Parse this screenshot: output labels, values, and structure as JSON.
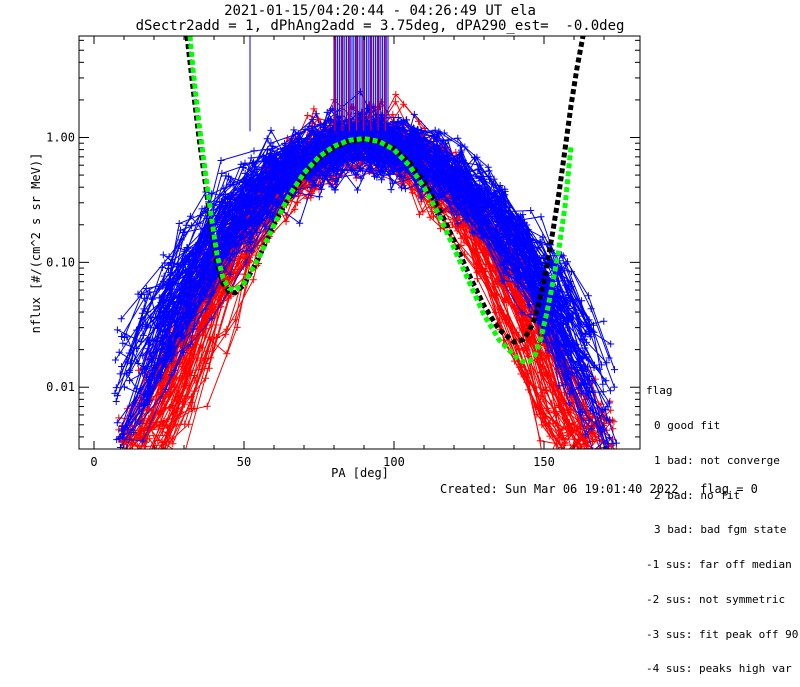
{
  "chart_data": {
    "type": "line",
    "title": "2021-01-15/04:20:44 - 04:26:49 UT ela",
    "subtitle": "dSectr2add = 1, dPhAng2add = 3.75deg, dPA290_est=  -0.0deg",
    "xlabel": "PA [deg]",
    "ylabel": "nflux [#/(cm^2 s sr MeV)]",
    "xlim": [
      -5,
      182
    ],
    "ylim": [
      0.0032,
      6.5
    ],
    "y_scale": "log",
    "x_ticks": [
      0,
      50,
      100,
      150
    ],
    "x_tick_labels": [
      "0",
      "50",
      "100",
      "150"
    ],
    "y_ticks": [
      0.01,
      0.1,
      1.0
    ],
    "y_tick_labels": [
      "0.01",
      "0.10",
      "1.00"
    ],
    "grid": false,
    "colors": {
      "red": "#ff0000",
      "blue": "#0000ff",
      "black": "#000000",
      "green": "#00ff00"
    },
    "fit_curves": [
      {
        "color": "black",
        "style": "thick-dashed",
        "x": [
          31,
          33,
          35,
          37,
          39,
          41,
          43,
          45,
          47,
          50,
          55,
          60,
          65,
          70,
          75,
          80,
          85,
          90,
          95,
          100,
          105,
          110,
          115,
          120,
          125,
          130,
          135,
          140,
          143,
          145,
          147,
          149,
          151,
          153,
          155,
          157,
          159,
          161,
          163
        ],
        "y": [
          6.5,
          2.5,
          1.0,
          0.45,
          0.2,
          0.1,
          0.068,
          0.058,
          0.057,
          0.066,
          0.11,
          0.2,
          0.33,
          0.5,
          0.68,
          0.83,
          0.93,
          0.97,
          0.93,
          0.82,
          0.64,
          0.44,
          0.27,
          0.15,
          0.08,
          0.045,
          0.029,
          0.023,
          0.024,
          0.028,
          0.036,
          0.055,
          0.095,
          0.18,
          0.36,
          0.8,
          1.8,
          3.6,
          6.5
        ]
      },
      {
        "color": "green",
        "style": "thick-dashed",
        "x": [
          32,
          33,
          35,
          37,
          39,
          41,
          43,
          45,
          47,
          50,
          55,
          60,
          65,
          70,
          75,
          80,
          85,
          90,
          95,
          100,
          105,
          110,
          115,
          120,
          125,
          130,
          135,
          140,
          143,
          145,
          147,
          149,
          151,
          153,
          155,
          157,
          159
        ],
        "y": [
          6.5,
          3.5,
          1.3,
          0.55,
          0.24,
          0.115,
          0.075,
          0.062,
          0.06,
          0.068,
          0.11,
          0.2,
          0.34,
          0.52,
          0.7,
          0.85,
          0.95,
          0.98,
          0.93,
          0.8,
          0.6,
          0.4,
          0.24,
          0.13,
          0.07,
          0.038,
          0.024,
          0.018,
          0.016,
          0.016,
          0.018,
          0.025,
          0.04,
          0.07,
          0.13,
          0.28,
          0.85
        ]
      }
    ],
    "upper_bars": {
      "x_range": [
        80,
        98
      ],
      "y_from": 1.12,
      "y_to": 6.5,
      "extra_x": [
        52
      ],
      "extra_from": [
        1.12
      ]
    },
    "data_series_counts": {
      "red": 80,
      "blue": 100
    },
    "data_series_note": "many overlapping red and blue per-sector PA distributions with + markers"
  },
  "legend": {
    "heading": "flag",
    "items": [
      "0 good fit",
      "1 bad: not converge",
      "2 bad: no fit",
      "3 bad: bad fgm state",
      "-1 sus: far off median",
      "-2 sus: not symmetric",
      "-3 sus: fit peak off 90",
      "-4 sus: peaks high var"
    ]
  },
  "footer": {
    "created": "Created: Sun Mar 06 19:01:40 2022",
    "flag": "flag = 0"
  }
}
